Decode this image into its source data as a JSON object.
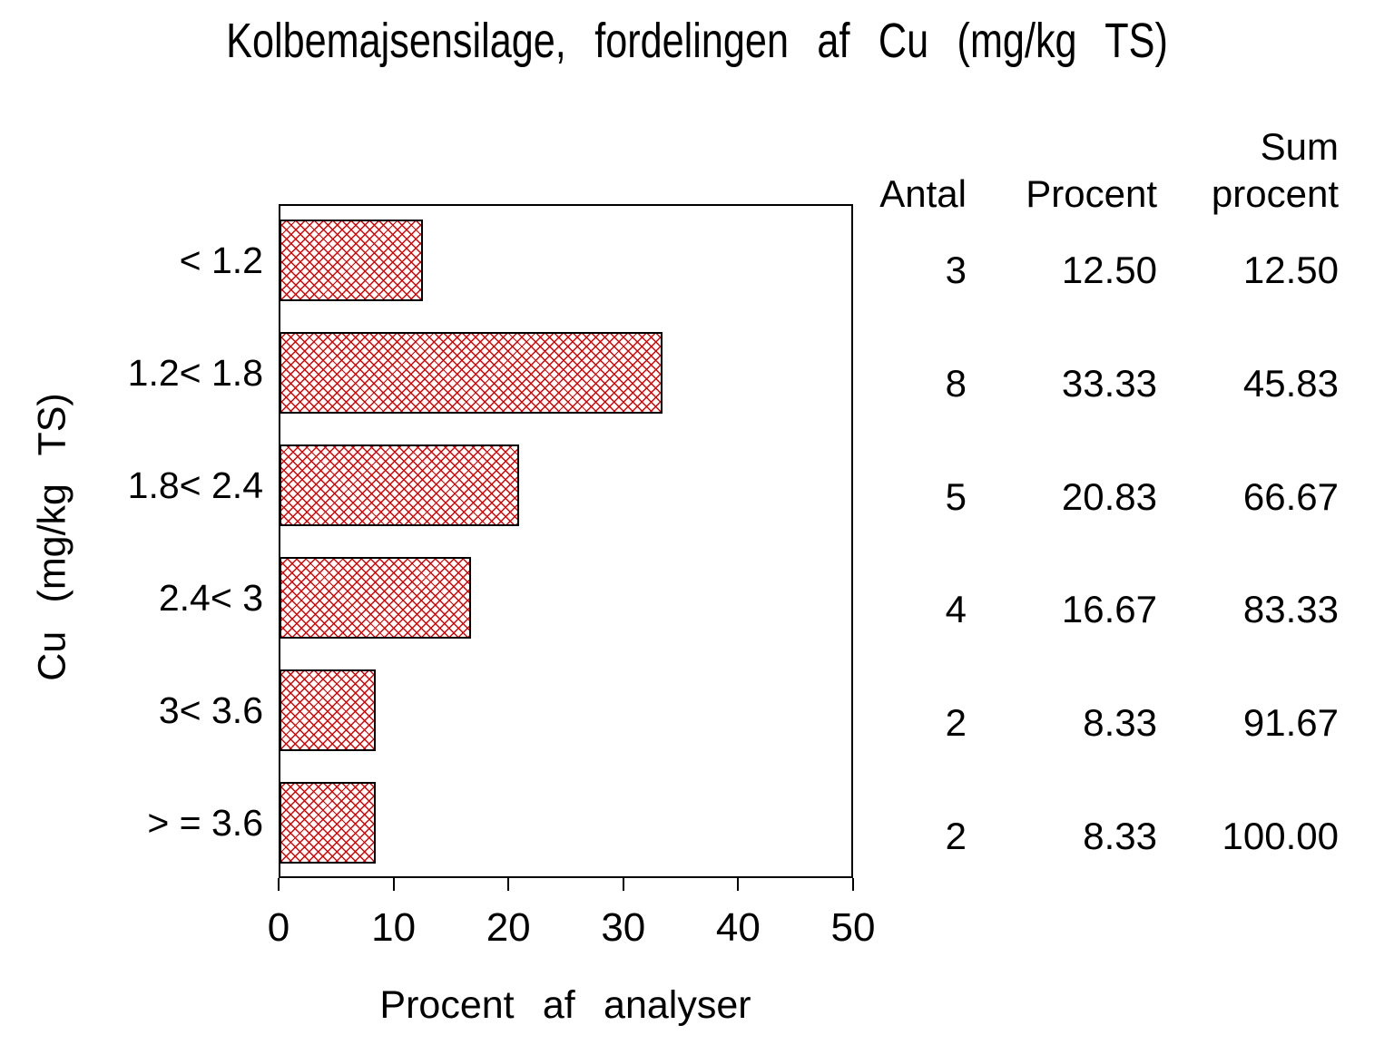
{
  "title": "Kolbemajsensilage, fordelingen af Cu (mg/kg TS)",
  "chart_data": {
    "type": "bar",
    "orientation": "horizontal",
    "title": "Kolbemajsensilage, fordelingen af Cu (mg/kg TS)",
    "xlabel": "Procent af analyser",
    "ylabel": "Cu (mg/kg TS)",
    "categories": [
      "< 1.2",
      "1.2< 1.8",
      "1.8< 2.4",
      "2.4< 3",
      "3< 3.6",
      "> = 3.6"
    ],
    "values": [
      12.5,
      33.33,
      20.83,
      16.67,
      8.33,
      8.33
    ],
    "xlim": [
      0,
      50
    ],
    "xticks": [
      0,
      10,
      20,
      30,
      40,
      50
    ],
    "grid": false,
    "legend": "none",
    "bar_pattern": "red-crosshatch",
    "bar_color": "#e00000",
    "bar_border_color": "#000000"
  },
  "table": {
    "headers": {
      "antal": "Antal",
      "procent": "Procent",
      "sum_line1": "Sum",
      "sum_line2": "procent"
    },
    "rows": [
      {
        "antal": "3",
        "procent": "12.50",
        "sum": "12.50"
      },
      {
        "antal": "8",
        "procent": "33.33",
        "sum": "45.83"
      },
      {
        "antal": "5",
        "procent": "20.83",
        "sum": "66.67"
      },
      {
        "antal": "4",
        "procent": "16.67",
        "sum": "83.33"
      },
      {
        "antal": "2",
        "procent": "8.33",
        "sum": "91.67"
      },
      {
        "antal": "2",
        "procent": "8.33",
        "sum": "100.00"
      }
    ]
  }
}
